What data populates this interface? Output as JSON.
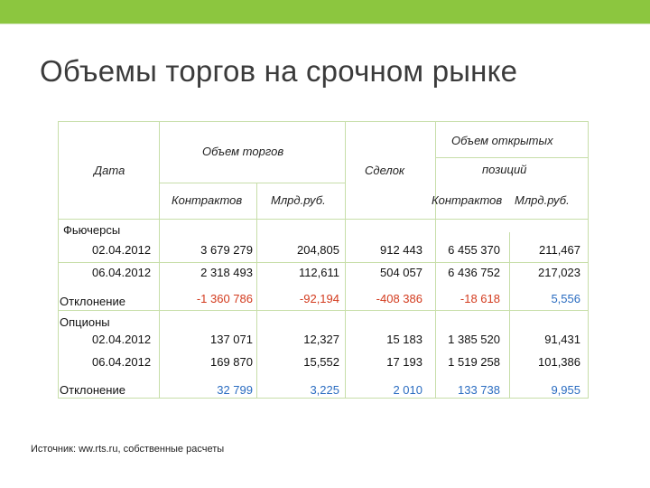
{
  "page": {
    "title": "Объемы торгов на срочном рынке",
    "source": "Источник: ww.rts.ru, собственные расчеты",
    "accent_color": "#8cc63f",
    "grid_color": "#c7dea9",
    "negative_color": "#d33b1e",
    "positive_color": "#2a6cc1"
  },
  "table": {
    "headers": {
      "date": "Дата",
      "trade_volume": "Объем торгов",
      "contracts": "Контрактов",
      "bln_rub": "Млрд.руб.",
      "deals": "Сделок",
      "open_pos_line1": "Объем открытых",
      "open_pos_line2": "позиций",
      "open_contracts": "Контрактов",
      "open_bln_rub": "Млрд.руб."
    },
    "sections": {
      "futures": "Фьючерсы",
      "options": "Опционы"
    },
    "rows": [
      {
        "date": "02.04.2012",
        "contracts": "3 679 279",
        "bln_rub": "204,805",
        "deals": "912 443",
        "open_contracts": "6 455 370",
        "open_bln_rub": "211,467"
      },
      {
        "date": "06.04.2012",
        "contracts": "2 318 493",
        "bln_rub": "112,611",
        "deals": "504 057",
        "open_contracts": "6 436 752",
        "open_bln_rub": "217,023"
      },
      {
        "date": "Отклонение",
        "contracts": "-1 360 786",
        "bln_rub": "-92,194",
        "deals": "-408 386",
        "open_contracts": "-18 618",
        "open_bln_rub": "5,556"
      },
      {
        "date": "02.04.2012",
        "contracts": "137 071",
        "bln_rub": "12,327",
        "deals": "15 183",
        "open_contracts": "1 385 520",
        "open_bln_rub": "91,431"
      },
      {
        "date": "06.04.2012",
        "contracts": "169 870",
        "bln_rub": "15,552",
        "deals": "17 193",
        "open_contracts": "1 519 258",
        "open_bln_rub": "101,386"
      },
      {
        "date": "Отклонение",
        "contracts": "32 799",
        "bln_rub": "3,225",
        "deals": "2 010",
        "open_contracts": "133 738",
        "open_bln_rub": "9,955"
      }
    ]
  }
}
